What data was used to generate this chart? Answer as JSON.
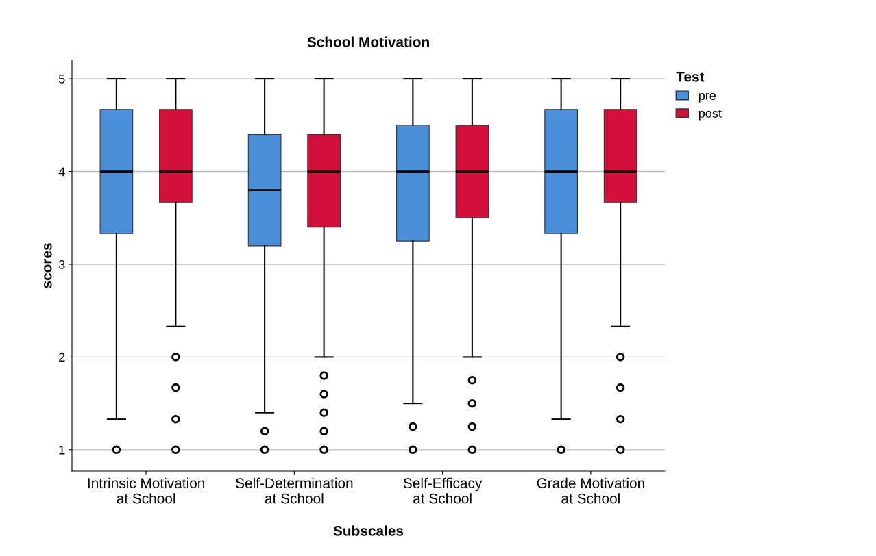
{
  "chart_data": {
    "type": "box",
    "title": "School Motivation",
    "xlabel": "Subscales",
    "ylabel": "scores",
    "legend_title": "Test",
    "categories": [
      "Intrinsic Motivation\nat School",
      "Self-Determination\nat School",
      "Self-Efficacy\nat School",
      "Grade Motivation\nat School"
    ],
    "series": [
      {
        "name": "pre",
        "color": "#4a8fd8",
        "boxes": [
          {
            "low": 1.33,
            "q1": 3.33,
            "median": 4,
            "q3": 4.67,
            "high": 5,
            "outliers": [
              1
            ]
          },
          {
            "low": 1.4,
            "q1": 3.2,
            "median": 3.8,
            "q3": 4.4,
            "high": 5,
            "outliers": [
              1.2,
              1
            ]
          },
          {
            "low": 1.5,
            "q1": 3.25,
            "median": 4,
            "q3": 4.5,
            "high": 5,
            "outliers": [
              1.25,
              1
            ]
          },
          {
            "low": 1.33,
            "q1": 3.33,
            "median": 4,
            "q3": 4.67,
            "high": 5,
            "outliers": [
              1
            ]
          }
        ]
      },
      {
        "name": "post",
        "color": "#d2103a",
        "boxes": [
          {
            "low": 2.33,
            "q1": 3.67,
            "median": 4,
            "q3": 4.67,
            "high": 5,
            "outliers": [
              2,
              1.67,
              1.33,
              1
            ]
          },
          {
            "low": 2,
            "q1": 3.4,
            "median": 4,
            "q3": 4.4,
            "high": 5,
            "outliers": [
              1.8,
              1.6,
              1.4,
              1.2,
              1
            ]
          },
          {
            "low": 2,
            "q1": 3.5,
            "median": 4,
            "q3": 4.5,
            "high": 5,
            "outliers": [
              1.75,
              1.5,
              1.25,
              1
            ]
          },
          {
            "low": 2.33,
            "q1": 3.67,
            "median": 4,
            "q3": 4.67,
            "high": 5,
            "outliers": [
              2,
              1.67,
              1.33,
              1
            ]
          }
        ]
      }
    ],
    "ylim": [
      0.77,
      5.2
    ],
    "yticks": [
      1,
      2,
      3,
      4,
      5
    ],
    "grid": "y",
    "legend": "top right"
  }
}
